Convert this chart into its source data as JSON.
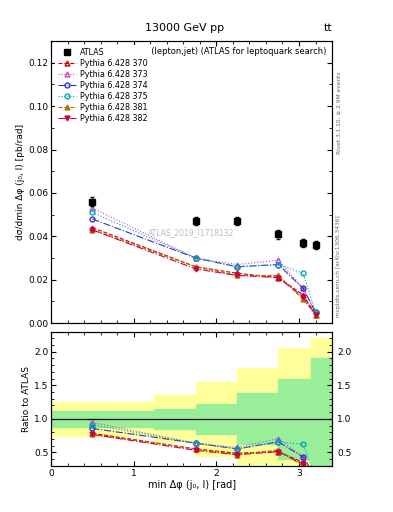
{
  "title_top": "13000 GeV pp",
  "title_right": "tt",
  "plot_title": "Δφ(lepton,jet) (ATLAS for leptoquark search)",
  "xlabel": "min Δφ (j₀, l) [rad]",
  "ylabel_main": "dσ/dmin Δφ (j₀, l) [pb/rad]",
  "ylabel_ratio": "Ratio to ATLAS",
  "rivet_label": "Rivet 3.1.10, ≥ 2.9M events",
  "inspire_label": "mcplots.cern.ch [arXiv:1306.3436]",
  "watermark": "ATLAS_2019_I1718132",
  "xlim": [
    0,
    3.4
  ],
  "ylim_main": [
    0,
    0.13
  ],
  "ylim_ratio": [
    0.3,
    2.3
  ],
  "atlas_x": [
    0.5,
    1.75,
    2.25,
    2.75,
    3.05,
    3.2
  ],
  "atlas_y": [
    0.056,
    0.047,
    0.047,
    0.041,
    0.037,
    0.036
  ],
  "atlas_yerr": [
    0.002,
    0.002,
    0.002,
    0.002,
    0.002,
    0.002
  ],
  "mc_x": [
    0.5,
    1.75,
    2.25,
    2.75,
    3.05,
    3.2
  ],
  "series": [
    {
      "label": "Pythia 6.428 370",
      "color": "#cc0000",
      "linestyle": "--",
      "marker": "^",
      "markerfacecolor": "none",
      "y": [
        0.044,
        0.026,
        0.023,
        0.021,
        0.013,
        0.004
      ]
    },
    {
      "label": "Pythia 6.428 373",
      "color": "#cc44cc",
      "linestyle": ":",
      "marker": "^",
      "markerfacecolor": "none",
      "y": [
        0.053,
        0.03,
        0.027,
        0.029,
        0.016,
        0.005
      ]
    },
    {
      "label": "Pythia 6.428 374",
      "color": "#3333cc",
      "linestyle": "-.",
      "marker": "o",
      "markerfacecolor": "none",
      "y": [
        0.048,
        0.03,
        0.026,
        0.027,
        0.016,
        0.005
      ]
    },
    {
      "label": "Pythia 6.428 375",
      "color": "#00aaaa",
      "linestyle": ":",
      "marker": "o",
      "markerfacecolor": "none",
      "y": [
        0.051,
        0.03,
        0.026,
        0.027,
        0.023,
        0.005
      ]
    },
    {
      "label": "Pythia 6.428 381",
      "color": "#aa7700",
      "linestyle": "--",
      "marker": "^",
      "markerfacecolor": "#aa7700",
      "y": [
        0.043,
        0.026,
        0.022,
        0.022,
        0.011,
        0.004
      ]
    },
    {
      "label": "Pythia 6.428 382",
      "color": "#cc0044",
      "linestyle": "-.",
      "marker": "v",
      "markerfacecolor": "#cc0044",
      "y": [
        0.043,
        0.025,
        0.022,
        0.021,
        0.012,
        0.004
      ]
    }
  ],
  "ratio_band_edges": [
    0.0,
    0.25,
    0.75,
    1.25,
    1.75,
    2.25,
    2.75,
    3.15,
    3.4
  ],
  "ratio_yellow_top": [
    1.25,
    1.25,
    1.25,
    1.35,
    1.55,
    1.75,
    2.05,
    2.2,
    2.2
  ],
  "ratio_yellow_bot": [
    0.75,
    0.75,
    0.75,
    0.65,
    0.45,
    0.25,
    -0.05,
    -0.2,
    -0.2
  ],
  "ratio_green_top": [
    1.12,
    1.12,
    1.12,
    1.15,
    1.22,
    1.38,
    1.6,
    1.9,
    1.9
  ],
  "ratio_green_bot": [
    0.88,
    0.88,
    0.88,
    0.85,
    0.78,
    0.62,
    0.4,
    0.1,
    0.1
  ],
  "background_color": "#ffffff"
}
